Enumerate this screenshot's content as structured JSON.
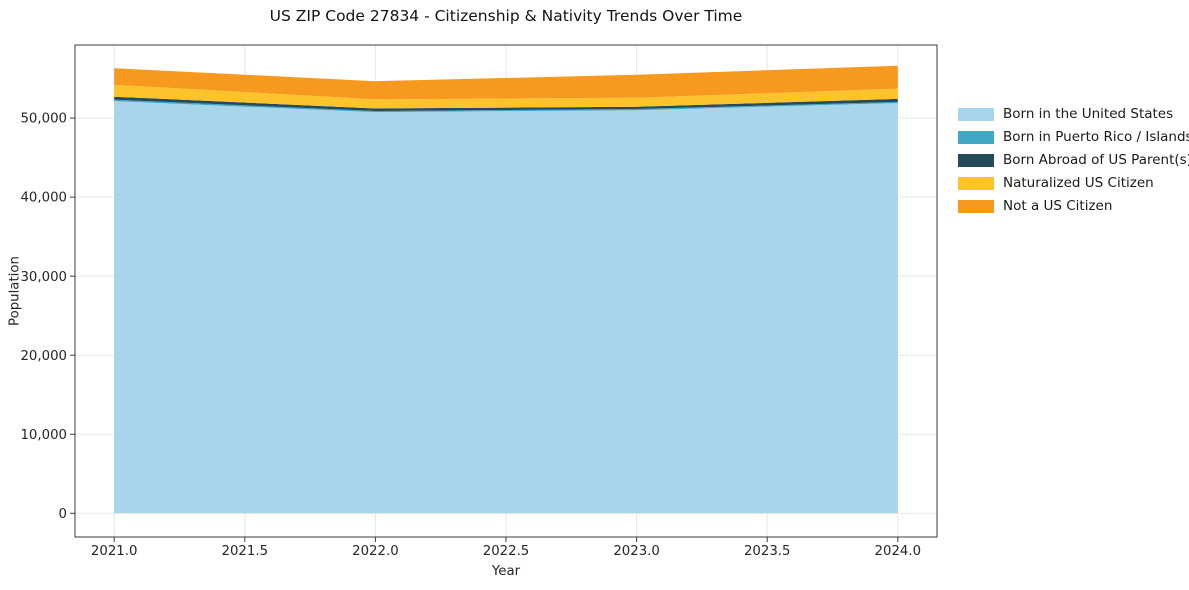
{
  "title": "US ZIP Code 27834 - Citizenship & Nativity Trends Over Time",
  "axes": {
    "x_label": "Year",
    "y_label": "Population",
    "x_ticks": {
      "values": [
        2021.0,
        2021.5,
        2022.0,
        2022.5,
        2023.0,
        2023.5,
        2024.0
      ],
      "labels": [
        "2021.0",
        "2021.5",
        "2022.0",
        "2022.5",
        "2023.0",
        "2023.5",
        "2024.0"
      ]
    },
    "y_ticks": {
      "values": [
        0,
        10000,
        20000,
        30000,
        40000,
        50000
      ],
      "labels": [
        "0",
        "10,000",
        "20,000",
        "30,000",
        "40,000",
        "50,000"
      ]
    },
    "grid_color": "#e8e8e8",
    "spine_color": "#3c3c3c",
    "text_color": "#262626"
  },
  "chart_data": {
    "type": "area",
    "stacked": true,
    "x": [
      2021,
      2022,
      2023,
      2024
    ],
    "series": [
      {
        "name": "Born in the United States",
        "color": "#a7d5ea",
        "values": [
          52150,
          50750,
          51000,
          51900
        ]
      },
      {
        "name": "Born in Puerto Rico / Islands",
        "color": "#3ea8c5",
        "values": [
          180,
          150,
          150,
          150
        ]
      },
      {
        "name": "Born Abroad of US Parent(s)",
        "color": "#274a5b",
        "values": [
          380,
          320,
          280,
          380
        ]
      },
      {
        "name": "Naturalized US Citizen",
        "color": "#fcc32d",
        "values": [
          1500,
          1150,
          1150,
          1300
        ]
      },
      {
        "name": "Not a US Citizen",
        "color": "#f8991f",
        "values": [
          2100,
          2300,
          2900,
          2900
        ]
      }
    ],
    "totals_by_year": [
      56310,
      54670,
      55480,
      56630
    ],
    "title": "US ZIP Code 27834 - Citizenship & Nativity Trends Over Time",
    "xlabel": "Year",
    "ylabel": "Population",
    "xlim": [
      2020.85,
      2024.15
    ],
    "ylim": [
      -3000,
      59250
    ],
    "grid": true,
    "legend_position": "right"
  }
}
